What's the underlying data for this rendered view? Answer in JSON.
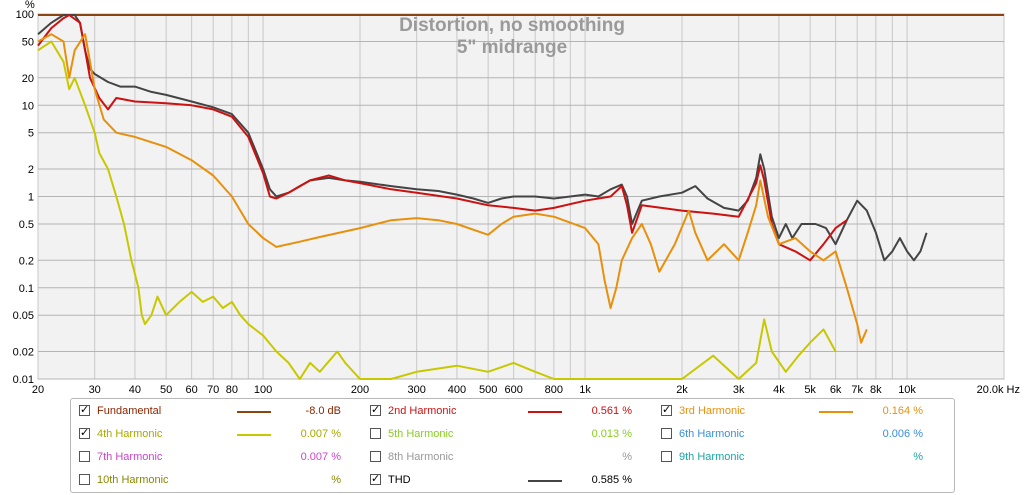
{
  "chart_data": {
    "type": "line",
    "title": "Distortion, no smoothing",
    "subtitle": "5\" midrange",
    "ylabel": "%",
    "xlabel": "",
    "x_scale": "log",
    "y_scale": "log",
    "xlim": [
      20,
      20000
    ],
    "ylim": [
      0.01,
      100
    ],
    "grid": true,
    "x_ticks": [
      {
        "v": 20,
        "label": "20"
      },
      {
        "v": 30,
        "label": "30"
      },
      {
        "v": 40,
        "label": "40"
      },
      {
        "v": 50,
        "label": "50"
      },
      {
        "v": 60,
        "label": "60"
      },
      {
        "v": 70,
        "label": "70"
      },
      {
        "v": 80,
        "label": "80"
      },
      {
        "v": 100,
        "label": "100"
      },
      {
        "v": 200,
        "label": "200"
      },
      {
        "v": 300,
        "label": "300"
      },
      {
        "v": 400,
        "label": "400"
      },
      {
        "v": 500,
        "label": "500"
      },
      {
        "v": 600,
        "label": "600"
      },
      {
        "v": 800,
        "label": "800"
      },
      {
        "v": 1000,
        "label": "1k"
      },
      {
        "v": 2000,
        "label": "2k"
      },
      {
        "v": 3000,
        "label": "3k"
      },
      {
        "v": 4000,
        "label": "4k"
      },
      {
        "v": 5000,
        "label": "5k"
      },
      {
        "v": 6000,
        "label": "6k"
      },
      {
        "v": 7000,
        "label": "7k"
      },
      {
        "v": 8000,
        "label": "8k"
      },
      {
        "v": 10000,
        "label": "10k"
      },
      {
        "v": 20000,
        "label": "20.0k Hz"
      }
    ],
    "y_ticks": [
      {
        "v": 100,
        "label": "100"
      },
      {
        "v": 50,
        "label": "50"
      },
      {
        "v": 20,
        "label": "20"
      },
      {
        "v": 10,
        "label": "10"
      },
      {
        "v": 5,
        "label": "5"
      },
      {
        "v": 2,
        "label": "2"
      },
      {
        "v": 1,
        "label": "1"
      },
      {
        "v": 0.5,
        "label": "0.5"
      },
      {
        "v": 0.2,
        "label": "0.2"
      },
      {
        "v": 0.1,
        "label": "0.1"
      },
      {
        "v": 0.05,
        "label": "0.05"
      },
      {
        "v": 0.02,
        "label": "0.02"
      },
      {
        "v": 0.01,
        "label": "0.01"
      }
    ],
    "series": [
      {
        "name": "Fundamental",
        "color": "#8b4513",
        "points": [
          [
            20,
            100
          ],
          [
            20000,
            100
          ]
        ]
      },
      {
        "name": "THD",
        "color": "#444444",
        "points": [
          [
            20,
            60
          ],
          [
            22,
            80
          ],
          [
            24,
            100
          ],
          [
            26,
            100
          ],
          [
            27,
            80
          ],
          [
            28,
            40
          ],
          [
            29,
            25
          ],
          [
            30,
            22
          ],
          [
            33,
            18
          ],
          [
            36,
            16
          ],
          [
            40,
            16
          ],
          [
            45,
            14
          ],
          [
            50,
            13
          ],
          [
            60,
            11
          ],
          [
            70,
            9.5
          ],
          [
            80,
            8
          ],
          [
            90,
            5
          ],
          [
            100,
            2
          ],
          [
            105,
            1.2
          ],
          [
            110,
            1.0
          ],
          [
            120,
            1.1
          ],
          [
            130,
            1.3
          ],
          [
            140,
            1.5
          ],
          [
            160,
            1.6
          ],
          [
            180,
            1.5
          ],
          [
            200,
            1.45
          ],
          [
            250,
            1.3
          ],
          [
            300,
            1.2
          ],
          [
            350,
            1.15
          ],
          [
            400,
            1.05
          ],
          [
            450,
            0.95
          ],
          [
            500,
            0.85
          ],
          [
            550,
            0.95
          ],
          [
            600,
            1.0
          ],
          [
            700,
            1.0
          ],
          [
            800,
            0.95
          ],
          [
            900,
            1.0
          ],
          [
            1000,
            1.05
          ],
          [
            1100,
            1.0
          ],
          [
            1200,
            1.2
          ],
          [
            1300,
            1.35
          ],
          [
            1350,
            1.0
          ],
          [
            1400,
            0.5
          ],
          [
            1500,
            0.9
          ],
          [
            1700,
            1.0
          ],
          [
            2000,
            1.1
          ],
          [
            2200,
            1.3
          ],
          [
            2400,
            0.95
          ],
          [
            2700,
            0.75
          ],
          [
            3000,
            0.7
          ],
          [
            3200,
            0.9
          ],
          [
            3400,
            1.6
          ],
          [
            3500,
            2.9
          ],
          [
            3600,
            2.0
          ],
          [
            3800,
            0.6
          ],
          [
            4000,
            0.35
          ],
          [
            4200,
            0.5
          ],
          [
            4400,
            0.35
          ],
          [
            4700,
            0.5
          ],
          [
            5200,
            0.5
          ],
          [
            5600,
            0.45
          ],
          [
            6000,
            0.3
          ],
          [
            6500,
            0.55
          ],
          [
            7000,
            0.9
          ],
          [
            7500,
            0.7
          ],
          [
            8000,
            0.4
          ],
          [
            8500,
            0.2
          ],
          [
            9000,
            0.25
          ],
          [
            9500,
            0.35
          ],
          [
            10000,
            0.25
          ],
          [
            10500,
            0.2
          ],
          [
            11000,
            0.25
          ],
          [
            11500,
            0.4
          ]
        ]
      },
      {
        "name": "2nd Harmonic",
        "color": "#cc1111",
        "points": [
          [
            20,
            45
          ],
          [
            22,
            70
          ],
          [
            24,
            90
          ],
          [
            25,
            100
          ],
          [
            27,
            80
          ],
          [
            28,
            40
          ],
          [
            29,
            20
          ],
          [
            31,
            12
          ],
          [
            33,
            9
          ],
          [
            35,
            12
          ],
          [
            40,
            11
          ],
          [
            50,
            10.5
          ],
          [
            60,
            10
          ],
          [
            70,
            9
          ],
          [
            80,
            7.5
          ],
          [
            90,
            4.5
          ],
          [
            100,
            1.8
          ],
          [
            105,
            1.0
          ],
          [
            110,
            0.95
          ],
          [
            120,
            1.1
          ],
          [
            140,
            1.5
          ],
          [
            160,
            1.7
          ],
          [
            180,
            1.5
          ],
          [
            200,
            1.4
          ],
          [
            250,
            1.2
          ],
          [
            300,
            1.1
          ],
          [
            400,
            0.95
          ],
          [
            500,
            0.8
          ],
          [
            600,
            0.75
          ],
          [
            700,
            0.7
          ],
          [
            800,
            0.75
          ],
          [
            1000,
            0.9
          ],
          [
            1200,
            1.0
          ],
          [
            1300,
            1.3
          ],
          [
            1350,
            0.8
          ],
          [
            1400,
            0.4
          ],
          [
            1500,
            0.8
          ],
          [
            2000,
            0.7
          ],
          [
            2500,
            0.65
          ],
          [
            3000,
            0.6
          ],
          [
            3400,
            1.4
          ],
          [
            3500,
            2.2
          ],
          [
            3600,
            1.5
          ],
          [
            3800,
            0.5
          ],
          [
            4000,
            0.3
          ],
          [
            4500,
            0.25
          ],
          [
            5000,
            0.2
          ],
          [
            5500,
            0.3
          ],
          [
            6000,
            0.45
          ],
          [
            6500,
            0.55
          ]
        ]
      },
      {
        "name": "3rd Harmonic",
        "color": "#e8900c",
        "points": [
          [
            20,
            50
          ],
          [
            22,
            60
          ],
          [
            24,
            50
          ],
          [
            25,
            20
          ],
          [
            26,
            40
          ],
          [
            28,
            60
          ],
          [
            29,
            30
          ],
          [
            30,
            15
          ],
          [
            32,
            7
          ],
          [
            35,
            5
          ],
          [
            40,
            4.5
          ],
          [
            50,
            3.5
          ],
          [
            60,
            2.5
          ],
          [
            70,
            1.7
          ],
          [
            80,
            1.0
          ],
          [
            90,
            0.5
          ],
          [
            100,
            0.35
          ],
          [
            110,
            0.28
          ],
          [
            130,
            0.32
          ],
          [
            150,
            0.36
          ],
          [
            200,
            0.45
          ],
          [
            250,
            0.55
          ],
          [
            300,
            0.58
          ],
          [
            350,
            0.55
          ],
          [
            400,
            0.5
          ],
          [
            500,
            0.38
          ],
          [
            550,
            0.5
          ],
          [
            600,
            0.6
          ],
          [
            700,
            0.65
          ],
          [
            800,
            0.6
          ],
          [
            1000,
            0.45
          ],
          [
            1100,
            0.3
          ],
          [
            1150,
            0.12
          ],
          [
            1200,
            0.06
          ],
          [
            1250,
            0.1
          ],
          [
            1300,
            0.2
          ],
          [
            1400,
            0.35
          ],
          [
            1500,
            0.5
          ],
          [
            1600,
            0.3
          ],
          [
            1700,
            0.15
          ],
          [
            1900,
            0.3
          ],
          [
            2100,
            0.7
          ],
          [
            2200,
            0.4
          ],
          [
            2400,
            0.2
          ],
          [
            2700,
            0.3
          ],
          [
            3000,
            0.2
          ],
          [
            3200,
            0.4
          ],
          [
            3400,
            0.8
          ],
          [
            3500,
            1.5
          ],
          [
            3700,
            0.6
          ],
          [
            4000,
            0.3
          ],
          [
            4500,
            0.35
          ],
          [
            5000,
            0.25
          ],
          [
            5500,
            0.2
          ],
          [
            6000,
            0.25
          ],
          [
            6500,
            0.1
          ],
          [
            7000,
            0.04
          ],
          [
            7200,
            0.025
          ],
          [
            7500,
            0.035
          ]
        ]
      },
      {
        "name": "4th Harmonic",
        "color": "#c8c800",
        "points": [
          [
            20,
            40
          ],
          [
            22,
            50
          ],
          [
            24,
            30
          ],
          [
            25,
            15
          ],
          [
            26,
            20
          ],
          [
            28,
            10
          ],
          [
            30,
            5
          ],
          [
            31,
            3
          ],
          [
            33,
            2
          ],
          [
            35,
            1
          ],
          [
            37,
            0.5
          ],
          [
            39,
            0.2
          ],
          [
            41,
            0.1
          ],
          [
            42,
            0.05
          ],
          [
            43,
            0.04
          ],
          [
            45,
            0.05
          ],
          [
            47,
            0.08
          ],
          [
            50,
            0.05
          ],
          [
            55,
            0.07
          ],
          [
            60,
            0.09
          ],
          [
            65,
            0.07
          ],
          [
            70,
            0.08
          ],
          [
            75,
            0.06
          ],
          [
            80,
            0.07
          ],
          [
            85,
            0.05
          ],
          [
            90,
            0.04
          ],
          [
            100,
            0.03
          ],
          [
            110,
            0.02
          ],
          [
            120,
            0.015
          ],
          [
            130,
            0.01
          ],
          [
            140,
            0.015
          ],
          [
            150,
            0.012
          ],
          [
            170,
            0.02
          ],
          [
            180,
            0.015
          ],
          [
            200,
            0.01
          ],
          [
            250,
            0.008
          ],
          [
            300,
            0.012
          ],
          [
            400,
            0.014
          ],
          [
            500,
            0.012
          ],
          [
            600,
            0.015
          ],
          [
            700,
            0.012
          ],
          [
            800,
            0.01
          ],
          [
            1000,
            0.007
          ],
          [
            1500,
            0.006
          ],
          [
            2000,
            0.01
          ],
          [
            2500,
            0.018
          ],
          [
            3000,
            0.008
          ],
          [
            3400,
            0.015
          ],
          [
            3600,
            0.045
          ],
          [
            3800,
            0.02
          ],
          [
            4200,
            0.012
          ],
          [
            4600,
            0.018
          ],
          [
            5000,
            0.025
          ],
          [
            5500,
            0.035
          ],
          [
            6000,
            0.02
          ]
        ]
      }
    ]
  },
  "legend": [
    {
      "label": "Fundamental",
      "checked": true,
      "value": "-8.0 dB",
      "color": "#8b4513",
      "text_color": "#8b2500",
      "value_color": "#8b2500",
      "show_line": true
    },
    {
      "label": "2nd Harmonic",
      "checked": true,
      "value": "0.561 %",
      "color": "#cc1111",
      "text_color": "#cc1111",
      "value_color": "#cc1111",
      "show_line": true
    },
    {
      "label": "3rd Harmonic",
      "checked": true,
      "value": "0.164 %",
      "color": "#e8900c",
      "text_color": "#e8900c",
      "value_color": "#e8900c",
      "show_line": true
    },
    {
      "label": "4th Harmonic",
      "checked": true,
      "value": "0.007 %",
      "color": "#c8c800",
      "text_color": "#a8a800",
      "value_color": "#a8a800",
      "show_line": true
    },
    {
      "label": "5th Harmonic",
      "checked": false,
      "value": "0.013 %",
      "color": "#88cc22",
      "text_color": "#88cc22",
      "value_color": "#88cc22",
      "show_line": false
    },
    {
      "label": "6th Harmonic",
      "checked": false,
      "value": "0.006 %",
      "color": "#3a8fd8",
      "text_color": "#3a8fd8",
      "value_color": "#3a8fd8",
      "show_line": false
    },
    {
      "label": "7th Harmonic",
      "checked": false,
      "value": "0.007 %",
      "color": "#cc44cc",
      "text_color": "#cc44cc",
      "value_color": "#cc44cc",
      "show_line": false
    },
    {
      "label": "8th Harmonic",
      "checked": false,
      "value": "%",
      "color": "#999999",
      "text_color": "#999999",
      "value_color": "#999999",
      "show_line": false
    },
    {
      "label": "9th Harmonic",
      "checked": false,
      "value": "%",
      "color": "#1aa6a6",
      "text_color": "#1aa6a6",
      "value_color": "#1aa6a6",
      "show_line": false
    },
    {
      "label": "10th Harmonic",
      "checked": false,
      "value": "%",
      "color": "#888800",
      "text_color": "#888800",
      "value_color": "#888800",
      "show_line": false
    },
    {
      "label": "THD",
      "checked": true,
      "value": "0.585 %",
      "color": "#444444",
      "text_color": "#000000",
      "value_color": "#000000",
      "show_line": true
    }
  ]
}
